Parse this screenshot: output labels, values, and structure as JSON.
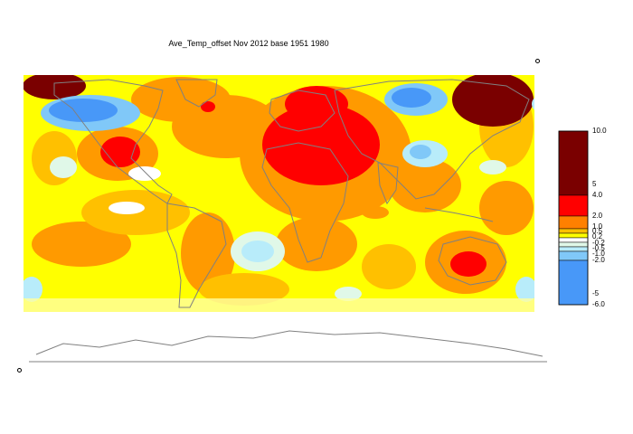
{
  "title": "Ave_Temp_offset Nov 2012  base 1951 1980",
  "legend": {
    "labels": [
      "10.0",
      "5",
      "4.0",
      "2.0",
      "1.0",
      "0.5",
      "0.2",
      "-0.2",
      "-0.5",
      "-1.0",
      "-2.0",
      "-5",
      "-6.0"
    ],
    "bands": [
      {
        "from": 4.0,
        "to": 10.0,
        "color": "#7a0000"
      },
      {
        "from": 2.0,
        "to": 4.0,
        "color": "#ff0000"
      },
      {
        "from": 1.0,
        "to": 2.0,
        "color": "#ff8000"
      },
      {
        "from": 0.5,
        "to": 1.0,
        "color": "#ffc000"
      },
      {
        "from": 0.2,
        "to": 0.5,
        "color": "#ffff00"
      },
      {
        "from": -0.2,
        "to": 0.2,
        "color": "#ffffff"
      },
      {
        "from": -0.5,
        "to": -0.2,
        "color": "#e0f8e8"
      },
      {
        "from": -1.0,
        "to": -0.5,
        "color": "#b8ecfa"
      },
      {
        "from": -2.0,
        "to": -1.0,
        "color": "#80c8f8"
      },
      {
        "from": -6.0,
        "to": -2.0,
        "color": "#4898f8"
      }
    ]
  },
  "colors": {
    "map_background": "#ffff00",
    "coastline": "#808080"
  }
}
